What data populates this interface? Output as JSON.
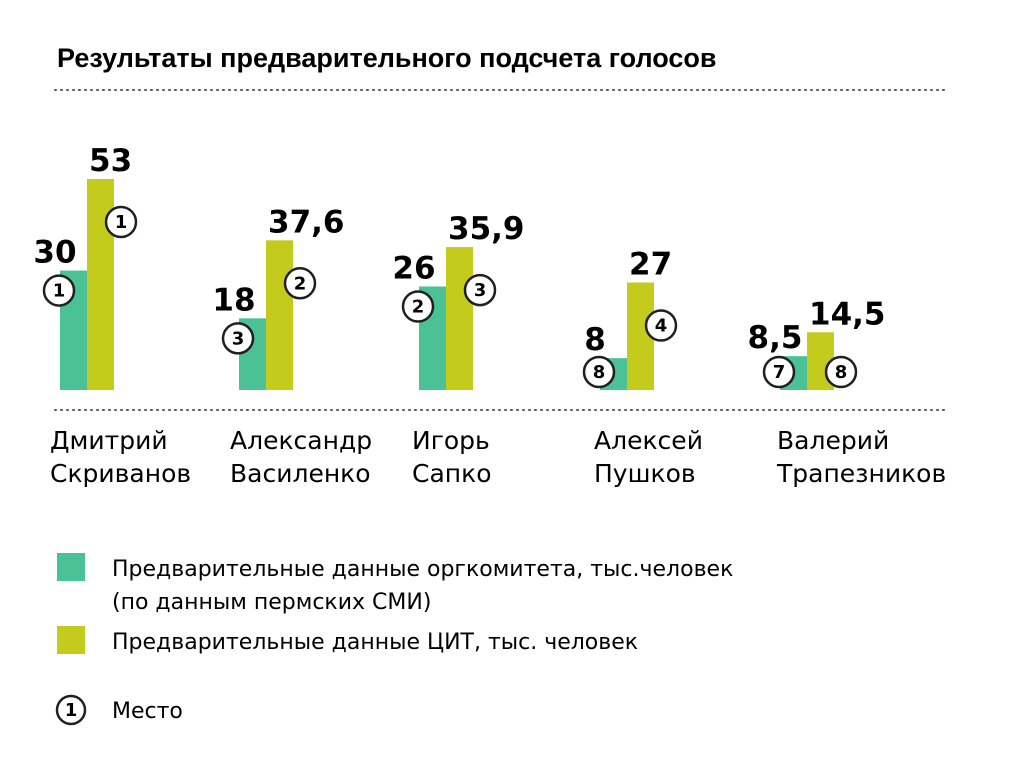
{
  "title": "Результаты предварительного подсчета голосов",
  "colors": {
    "series_orgcom": "#4bc196",
    "series_cit": "#c3cb1c",
    "text": "#231f20",
    "dots": "#555555"
  },
  "chart_data": {
    "type": "bar",
    "title": "Результаты предварительного подсчета голосов",
    "categories": [
      [
        "Дмитрий",
        "Скриванов"
      ],
      [
        "Александр",
        "Василенко"
      ],
      [
        "Игорь",
        "Сапко"
      ],
      [
        "Алексей",
        "Пушков"
      ],
      [
        "Валерий",
        "Трапезников"
      ]
    ],
    "series": [
      {
        "name": "Предварительные данные оргкомитета, тыс.человек (по данным пермских СМИ)",
        "values": [
          30,
          18,
          26,
          8,
          8.5
        ],
        "labels": [
          "30",
          "18",
          "26",
          "8",
          "8,5"
        ],
        "places": [
          "1",
          "3",
          "2",
          "8",
          "7"
        ]
      },
      {
        "name": "Предварительные данные ЦИТ, тыс. человек",
        "values": [
          53,
          37.6,
          35.9,
          27,
          14.5
        ],
        "labels": [
          "53",
          "37,6",
          "35,9",
          "27",
          "14,5"
        ],
        "places": [
          "1",
          "2",
          "3",
          "4",
          "8"
        ]
      }
    ],
    "ylim": [
      0,
      53
    ],
    "grid": false,
    "legend_position": "bottom-left"
  },
  "legend": {
    "orgcom_line1": "Предварительные данные оргкомитета, тыс.человек",
    "orgcom_line2": "(по данным пермских СМИ)",
    "cit": "Предварительные данные ЦИТ, тыс. человек",
    "place_symbol": "1",
    "place_label": "Место"
  }
}
